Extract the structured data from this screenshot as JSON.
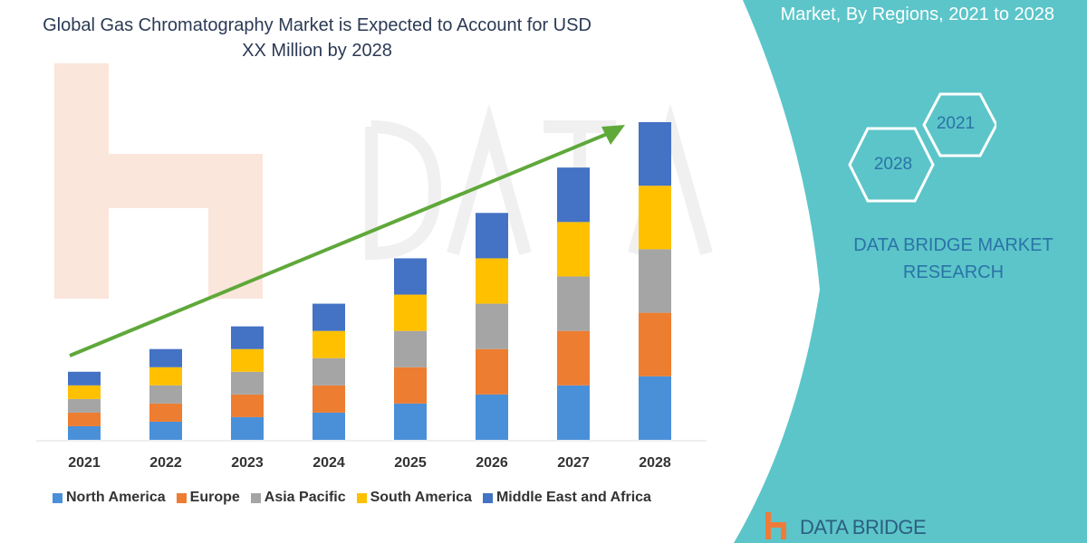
{
  "title": "Global Gas Chromatography Market is Expected to Account for USD XX Million by 2028",
  "side_panel": {
    "title_partial": "Market, By Regions, 2021 to 2028",
    "hex_labels": [
      "2021",
      "2028"
    ],
    "brand": "DATA BRIDGE MARKET RESEARCH",
    "logo_text": "DATA BRIDGE",
    "panel_color": "#5cc5c9"
  },
  "chart_data": {
    "type": "bar",
    "stacked": true,
    "title": "Global Gas Chromatography Market is Expected to Account for USD XX Million by 2028",
    "xlabel": "",
    "ylabel": "",
    "categories": [
      "2021",
      "2022",
      "2023",
      "2024",
      "2025",
      "2026",
      "2027",
      "2028"
    ],
    "series": [
      {
        "name": "North America",
        "color": "#4a90d9",
        "values": [
          15,
          20,
          25,
          30,
          40,
          50,
          60,
          70
        ]
      },
      {
        "name": "Europe",
        "color": "#ed7d31",
        "values": [
          15,
          20,
          25,
          30,
          40,
          50,
          60,
          70
        ]
      },
      {
        "name": "Asia Pacific",
        "color": "#a5a5a5",
        "values": [
          15,
          20,
          25,
          30,
          40,
          50,
          60,
          70
        ]
      },
      {
        "name": "South America",
        "color": "#ffc000",
        "values": [
          15,
          20,
          25,
          30,
          40,
          50,
          60,
          70
        ]
      },
      {
        "name": "Middle East and Africa",
        "color": "#4472c4",
        "values": [
          15,
          20,
          25,
          30,
          40,
          50,
          60,
          70
        ]
      }
    ],
    "trend_arrow_color": "#5fa83a",
    "legend_position": "bottom",
    "grid": false,
    "ylim": [
      0,
      350
    ]
  }
}
